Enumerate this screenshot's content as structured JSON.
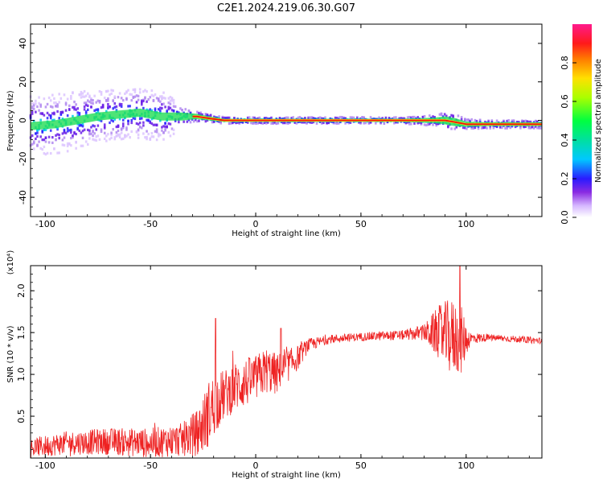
{
  "title": "C2E1.2024.219.06.30.G07",
  "colors": {
    "snr_line": "#ee2222",
    "ridge": "#ee1111",
    "axes": "#000000"
  },
  "colorbar": {
    "label": "Normalized spectral amplitude",
    "ticks": [
      "0.0",
      "0.2",
      "0.4",
      "0.6",
      "0.8"
    ],
    "tick_values": [
      0.0,
      0.2,
      0.4,
      0.6,
      0.8
    ],
    "range": [
      0,
      1
    ]
  },
  "chart_data": [
    {
      "type": "heatmap",
      "title": "C2E1.2024.219.06.30.G07",
      "xlabel": "Height of straight line (km)",
      "ylabel": "Frequency (Hz)",
      "xlim": [
        -107,
        136
      ],
      "ylim": [
        -50,
        50
      ],
      "x_ticks": [
        -100,
        -50,
        0,
        50,
        100
      ],
      "y_ticks": [
        40,
        20,
        0,
        -20,
        -40
      ],
      "x_tick_labels": [
        "-100",
        "-50",
        "0",
        "50",
        "100"
      ],
      "y_tick_labels": [
        "40",
        "20",
        "0",
        "-20",
        "-40"
      ],
      "grid": false,
      "ridge": {
        "x": [
          -107,
          -95,
          -85,
          -75,
          -65,
          -55,
          -45,
          -35,
          -28,
          -22,
          -15,
          -5,
          0,
          5,
          15,
          30,
          50,
          70,
          85,
          90,
          95,
          100,
          110,
          120,
          136
        ],
        "frequency": [
          -3,
          -2,
          0,
          2,
          3,
          4,
          2,
          2,
          2,
          1,
          0,
          0,
          0,
          0,
          0,
          0,
          0,
          0,
          0,
          0,
          -1,
          -2,
          -2,
          -2,
          -2
        ],
        "spread": [
          7,
          7,
          7,
          6,
          6,
          6,
          6,
          3,
          2,
          1.5,
          1.2,
          1.2,
          1.2,
          1.2,
          1.2,
          1.2,
          1.2,
          1.2,
          2,
          3,
          3,
          2,
          1.5,
          1.5,
          1.5
        ]
      }
    },
    {
      "type": "line",
      "xlabel": "Height of straight line (km)",
      "ylabel": "SNR (10 * v/v)",
      "yscale_label": "(x10⁴)",
      "xlim": [
        -107,
        136
      ],
      "ylim": [
        0,
        2.3
      ],
      "x_ticks": [
        -100,
        -50,
        0,
        50,
        100
      ],
      "y_ticks": [
        0.5,
        1.0,
        1.5,
        2.0
      ],
      "x_tick_labels": [
        "-100",
        "-50",
        "0",
        "50",
        "100"
      ],
      "y_tick_labels": [
        "0.5",
        "1.0",
        "1.5",
        "2.0"
      ],
      "grid": false,
      "series": [
        {
          "color": "#ee2222",
          "x": [
            -107,
            -90,
            -70,
            -50,
            -35,
            -28,
            -25,
            -22,
            -18,
            -15,
            -10,
            -5,
            0,
            5,
            10,
            15,
            20,
            25,
            35,
            50,
            70,
            80,
            88,
            92,
            96,
            98,
            100,
            102,
            110,
            125,
            136
          ],
          "y": [
            0.12,
            0.18,
            0.2,
            0.18,
            0.22,
            0.3,
            0.4,
            0.55,
            0.7,
            0.75,
            0.85,
            0.9,
            0.95,
            1.05,
            1.0,
            1.1,
            1.2,
            1.35,
            1.42,
            1.45,
            1.47,
            1.5,
            1.5,
            1.45,
            1.45,
            1.4,
            1.42,
            1.43,
            1.44,
            1.42,
            1.4
          ],
          "noise_amplitude": [
            0.12,
            0.14,
            0.16,
            0.18,
            0.2,
            0.28,
            0.35,
            0.4,
            0.35,
            0.3,
            0.3,
            0.3,
            0.28,
            0.28,
            0.25,
            0.2,
            0.15,
            0.08,
            0.05,
            0.05,
            0.06,
            0.1,
            0.35,
            0.45,
            0.45,
            0.4,
            0.2,
            0.08,
            0.04,
            0.04,
            0.04
          ]
        }
      ],
      "peaks": [
        {
          "x": -19,
          "y": 1.67
        },
        {
          "x": 12,
          "y": 1.55
        },
        {
          "x": 97,
          "y": 2.3
        }
      ]
    }
  ]
}
